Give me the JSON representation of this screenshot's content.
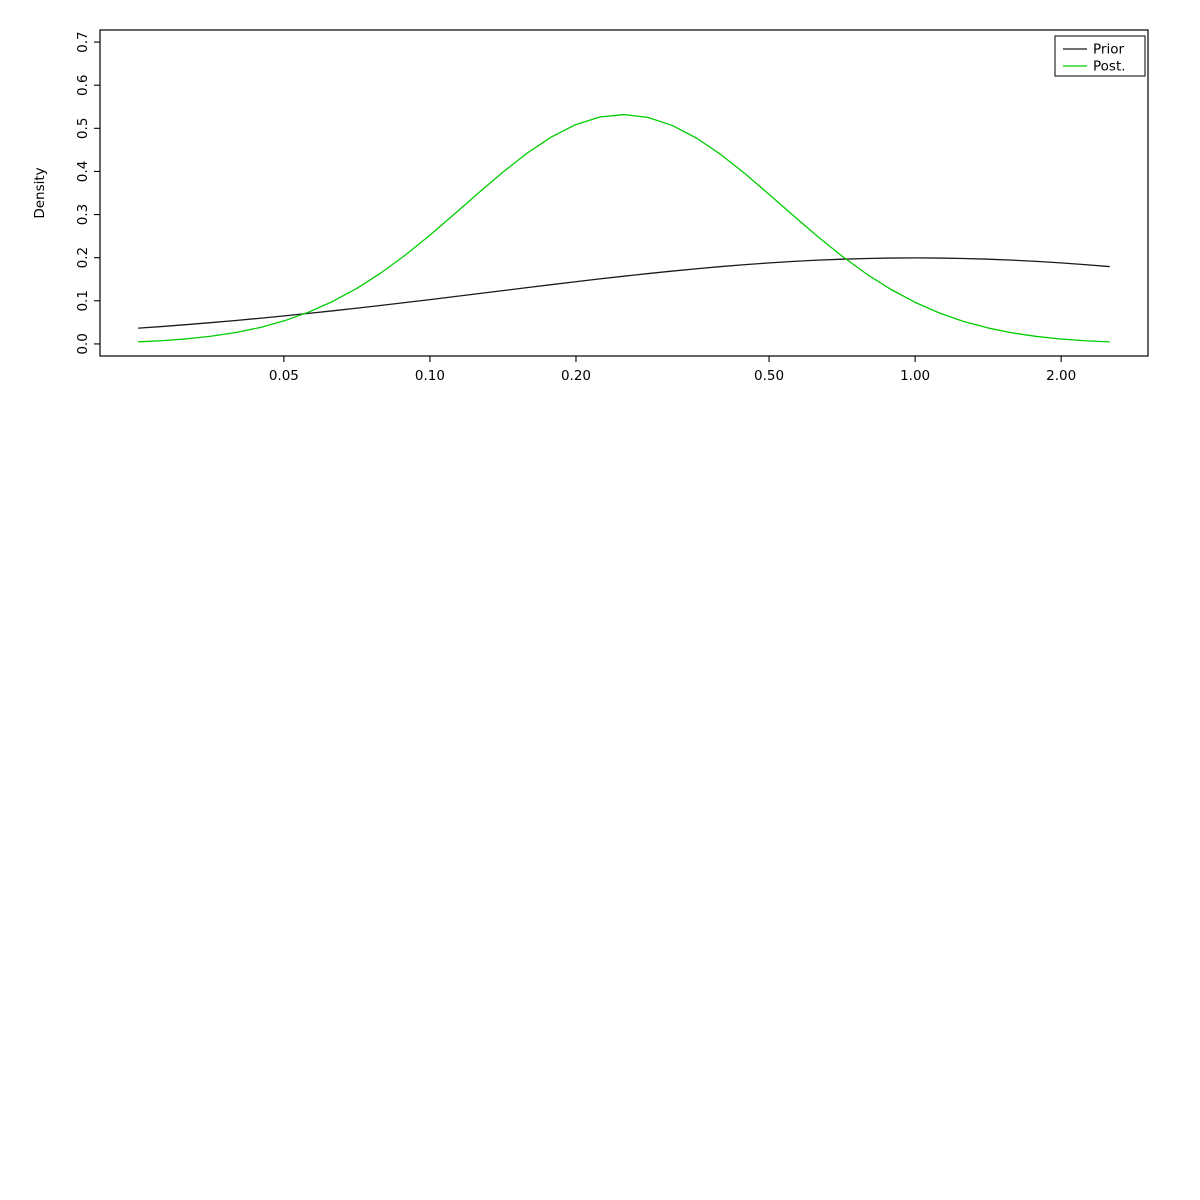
{
  "chart_data": {
    "type": "line",
    "title": "",
    "xlabel": "",
    "ylabel": "Density",
    "x_scale": "log",
    "grid": false,
    "xlim_log10": [
      -1.68,
      0.48
    ],
    "ylim": [
      -0.028,
      0.728
    ],
    "x_ticks": [
      0.05,
      0.1,
      0.2,
      0.5,
      1.0,
      2.0
    ],
    "x_tick_labels": [
      "0.05",
      "0.10",
      "0.20",
      "0.50",
      "1.00",
      "2.00"
    ],
    "y_ticks": [
      0.0,
      0.1,
      0.2,
      0.3,
      0.4,
      0.5,
      0.6,
      0.7
    ],
    "y_tick_labels": [
      "0.0",
      "0.1",
      "0.2",
      "0.3",
      "0.4",
      "0.5",
      "0.6",
      "0.7"
    ],
    "x": [
      0.0251,
      0.0282,
      0.0316,
      0.0355,
      0.0398,
      0.0447,
      0.0501,
      0.0562,
      0.0631,
      0.0708,
      0.0794,
      0.0891,
      0.1,
      0.1122,
      0.1259,
      0.1413,
      0.1585,
      0.1778,
      0.1995,
      0.2239,
      0.2512,
      0.2818,
      0.3162,
      0.3548,
      0.3981,
      0.4467,
      0.5012,
      0.5623,
      0.631,
      0.7079,
      0.7943,
      0.8913,
      1.0,
      1.122,
      1.2589,
      1.4125,
      1.5849,
      1.7783,
      1.9953,
      2.2387,
      2.5119
    ],
    "series": [
      {
        "name": "Prior",
        "color": "#1a1a1a",
        "values": [
          0.0366,
          0.0406,
          0.0449,
          0.0495,
          0.0544,
          0.0596,
          0.0651,
          0.0708,
          0.0768,
          0.083,
          0.0894,
          0.0961,
          0.1028,
          0.1097,
          0.1166,
          0.1236,
          0.1305,
          0.1374,
          0.1442,
          0.1508,
          0.1571,
          0.1632,
          0.169,
          0.1744,
          0.1794,
          0.1839,
          0.1879,
          0.1914,
          0.1943,
          0.1965,
          0.1981,
          0.1991,
          0.1995,
          0.1991,
          0.1981,
          0.1965,
          0.1943,
          0.1914,
          0.1879,
          0.1839,
          0.1794
        ]
      },
      {
        "name": "Post.",
        "color": "#00cd00",
        "values": [
          0.0049,
          0.0077,
          0.0119,
          0.018,
          0.0265,
          0.0382,
          0.0536,
          0.0736,
          0.0987,
          0.1292,
          0.1653,
          0.2066,
          0.2522,
          0.3007,
          0.3501,
          0.3981,
          0.4422,
          0.4798,
          0.5084,
          0.5262,
          0.5319,
          0.5252,
          0.5064,
          0.477,
          0.4388,
          0.3943,
          0.346,
          0.2966,
          0.2483,
          0.203,
          0.1621,
          0.1265,
          0.0964,
          0.0717,
          0.0521,
          0.0371,
          0.0257,
          0.0174,
          0.0115,
          0.0074,
          0.0047
        ]
      }
    ],
    "legend": {
      "position": "top-right",
      "entries": [
        "Prior",
        "Post."
      ]
    }
  }
}
